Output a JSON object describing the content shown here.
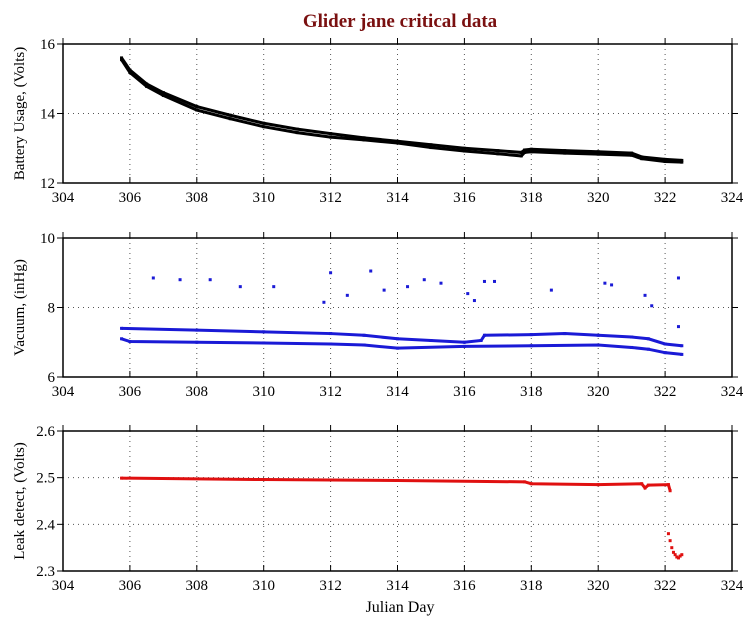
{
  "chart_data": {
    "title": "Glider jane critical data",
    "title_color": "#7a1010",
    "xlabel": "Julian Day",
    "xlim": [
      304,
      324
    ],
    "xticks": [
      304,
      306,
      308,
      310,
      312,
      314,
      316,
      318,
      320,
      322,
      324
    ],
    "grid": true,
    "panels": [
      {
        "type": "scatter",
        "ylabel": "Battery Usage, (Volts)",
        "ylim": [
          12,
          16
        ],
        "yticks": [
          12,
          14,
          16
        ],
        "color": "#000000",
        "series": [
          {
            "name": "upper",
            "points": [
              [
                305.75,
                15.6
              ],
              [
                306,
                15.25
              ],
              [
                306.5,
                14.85
              ],
              [
                307,
                14.6
              ],
              [
                308,
                14.2
              ],
              [
                309,
                13.95
              ],
              [
                310,
                13.72
              ],
              [
                311,
                13.55
              ],
              [
                312,
                13.42
              ],
              [
                313,
                13.3
              ],
              [
                314,
                13.2
              ],
              [
                315,
                13.1
              ],
              [
                316,
                13.0
              ],
              [
                317,
                12.93
              ],
              [
                317.7,
                12.88
              ],
              [
                317.8,
                12.95
              ],
              [
                318,
                12.97
              ],
              [
                319,
                12.93
              ],
              [
                320,
                12.9
              ],
              [
                321,
                12.86
              ],
              [
                321.3,
                12.75
              ],
              [
                322,
                12.68
              ],
              [
                322.5,
                12.65
              ]
            ]
          },
          {
            "name": "lower",
            "points": [
              [
                305.75,
                15.55
              ],
              [
                306,
                15.18
              ],
              [
                306.5,
                14.78
              ],
              [
                307,
                14.52
              ],
              [
                308,
                14.1
              ],
              [
                309,
                13.85
              ],
              [
                310,
                13.62
              ],
              [
                311,
                13.45
              ],
              [
                312,
                13.32
              ],
              [
                313,
                13.24
              ],
              [
                314,
                13.15
              ],
              [
                315,
                13.02
              ],
              [
                316,
                12.92
              ],
              [
                317,
                12.84
              ],
              [
                317.7,
                12.78
              ],
              [
                317.8,
                12.88
              ],
              [
                318,
                12.9
              ],
              [
                319,
                12.86
              ],
              [
                320,
                12.83
              ],
              [
                321,
                12.8
              ],
              [
                321.3,
                12.7
              ],
              [
                322,
                12.62
              ],
              [
                322.5,
                12.6
              ]
            ]
          }
        ]
      },
      {
        "type": "scatter",
        "ylabel": "Vacuum, (inHg)",
        "ylim": [
          6,
          10
        ],
        "yticks": [
          6,
          8,
          10
        ],
        "color": "#1a1ad6",
        "series": [
          {
            "name": "upper",
            "points": [
              [
                305.75,
                7.4
              ],
              [
                308,
                7.35
              ],
              [
                310,
                7.3
              ],
              [
                312,
                7.25
              ],
              [
                313,
                7.2
              ],
              [
                314,
                7.1
              ],
              [
                315,
                7.05
              ],
              [
                316,
                7.0
              ],
              [
                316.5,
                7.05
              ],
              [
                316.6,
                7.2
              ],
              [
                318,
                7.22
              ],
              [
                319,
                7.25
              ],
              [
                320,
                7.2
              ],
              [
                321,
                7.15
              ],
              [
                321.5,
                7.1
              ],
              [
                322,
                6.95
              ],
              [
                322.5,
                6.9
              ]
            ]
          },
          {
            "name": "lower",
            "points": [
              [
                305.75,
                7.1
              ],
              [
                306,
                7.02
              ],
              [
                308,
                7.0
              ],
              [
                310,
                6.98
              ],
              [
                312,
                6.95
              ],
              [
                313,
                6.92
              ],
              [
                314,
                6.83
              ],
              [
                316,
                6.88
              ],
              [
                318,
                6.9
              ],
              [
                320,
                6.92
              ],
              [
                321,
                6.85
              ],
              [
                321.5,
                6.8
              ],
              [
                322,
                6.7
              ],
              [
                322.5,
                6.65
              ]
            ]
          },
          {
            "name": "outliers",
            "points": [
              [
                306.7,
                8.85
              ],
              [
                307.5,
                8.8
              ],
              [
                308.4,
                8.8
              ],
              [
                309.3,
                8.6
              ],
              [
                310.3,
                8.6
              ],
              [
                311.8,
                8.15
              ],
              [
                312,
                9.0
              ],
              [
                312.5,
                8.35
              ],
              [
                313.2,
                9.05
              ],
              [
                313.6,
                8.5
              ],
              [
                314.3,
                8.6
              ],
              [
                314.8,
                8.8
              ],
              [
                315.3,
                8.7
              ],
              [
                316.1,
                8.4
              ],
              [
                316.3,
                8.2
              ],
              [
                316.6,
                8.75
              ],
              [
                316.9,
                8.75
              ],
              [
                318.6,
                8.5
              ],
              [
                320.2,
                8.7
              ],
              [
                320.4,
                8.65
              ],
              [
                321.4,
                8.35
              ],
              [
                321.6,
                8.05
              ],
              [
                322.4,
                8.85
              ],
              [
                322.4,
                7.45
              ]
            ]
          }
        ]
      },
      {
        "type": "scatter",
        "ylabel": "Leak detect, (Volts)",
        "ylim": [
          2.3,
          2.6
        ],
        "yticks": [
          2.3,
          2.4,
          2.5,
          2.6
        ],
        "color": "#e01010",
        "series": [
          {
            "name": "main",
            "points": [
              [
                305.75,
                2.499
              ],
              [
                310,
                2.496
              ],
              [
                314,
                2.494
              ],
              [
                317.8,
                2.491
              ],
              [
                318,
                2.487
              ],
              [
                320,
                2.485
              ],
              [
                321.3,
                2.487
              ],
              [
                321.4,
                2.478
              ],
              [
                321.5,
                2.484
              ],
              [
                322.1,
                2.485
              ],
              [
                322.15,
                2.472
              ]
            ]
          },
          {
            "name": "drop",
            "points": [
              [
                322.1,
                2.38
              ],
              [
                322.15,
                2.365
              ],
              [
                322.2,
                2.35
              ],
              [
                322.25,
                2.34
              ],
              [
                322.3,
                2.335
              ],
              [
                322.35,
                2.33
              ],
              [
                322.4,
                2.328
              ],
              [
                322.45,
                2.332
              ],
              [
                322.5,
                2.335
              ]
            ]
          }
        ]
      }
    ]
  }
}
